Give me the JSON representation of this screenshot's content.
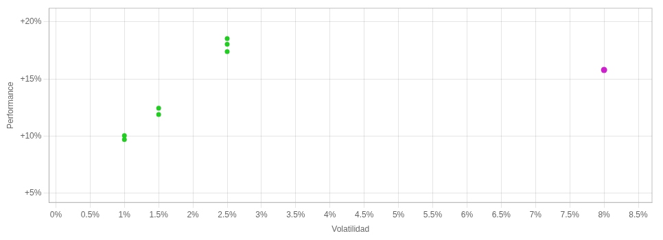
{
  "chart_data": {
    "type": "scatter",
    "xlabel": "Volatilidad",
    "ylabel": "Performance",
    "series": [
      {
        "color": "#22cc22",
        "x": [
          0.01,
          0.01,
          0.015,
          0.015,
          0.025,
          0.025,
          0.025
        ],
        "values": [
          0.1005,
          0.097,
          0.1245,
          0.119,
          0.1855,
          0.1805,
          0.174
        ]
      },
      {
        "color": "#cc22cc",
        "x": [
          0.08
        ],
        "values": [
          0.158
        ]
      }
    ],
    "xlim": [
      -0.001,
      0.087
    ],
    "ylim": [
      0.042,
      0.212
    ],
    "xticks": [
      {
        "value": 0.0,
        "label": "0%"
      },
      {
        "value": 0.005,
        "label": "0.5%"
      },
      {
        "value": 0.01,
        "label": "1%"
      },
      {
        "value": 0.015,
        "label": "1.5%"
      },
      {
        "value": 0.02,
        "label": "2%"
      },
      {
        "value": 0.025,
        "label": "2.5%"
      },
      {
        "value": 0.03,
        "label": "3%"
      },
      {
        "value": 0.035,
        "label": "3.5%"
      },
      {
        "value": 0.04,
        "label": "4%"
      },
      {
        "value": 0.045,
        "label": "4.5%"
      },
      {
        "value": 0.05,
        "label": "5%"
      },
      {
        "value": 0.055,
        "label": "5.5%"
      },
      {
        "value": 0.06,
        "label": "6%"
      },
      {
        "value": 0.065,
        "label": "6.5%"
      },
      {
        "value": 0.07,
        "label": "7%"
      },
      {
        "value": 0.075,
        "label": "7.5%"
      },
      {
        "value": 0.08,
        "label": "8%"
      },
      {
        "value": 0.085,
        "label": "8.5%"
      }
    ],
    "yticks": [
      {
        "value": 0.05,
        "label": "+5%"
      },
      {
        "value": 0.1,
        "label": "+10%"
      },
      {
        "value": 0.15,
        "label": "+15%"
      },
      {
        "value": 0.2,
        "label": "+20%"
      }
    ],
    "grid": true
  }
}
